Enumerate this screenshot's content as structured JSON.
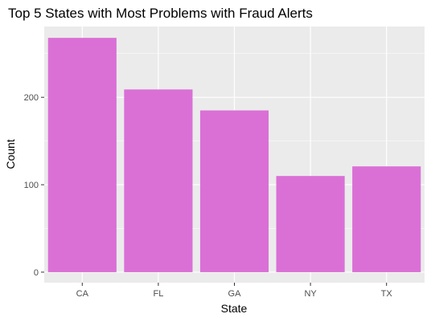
{
  "chart_data": {
    "type": "bar",
    "title": "Top 5 States with Most Problems with Fraud Alerts",
    "xlabel": "State",
    "ylabel": "Count",
    "categories": [
      "CA",
      "FL",
      "GA",
      "NY",
      "TX"
    ],
    "values": [
      268,
      209,
      185,
      110,
      121
    ],
    "ylim": [
      -12,
      281
    ],
    "yticks": [
      0,
      100,
      200
    ],
    "grid": true,
    "legend": "none",
    "bar_color": "#DA70D6",
    "panel_color": "#EBEBEB",
    "grid_color": "#FFFFFF",
    "axis_text_color": "#4D4D4D"
  }
}
